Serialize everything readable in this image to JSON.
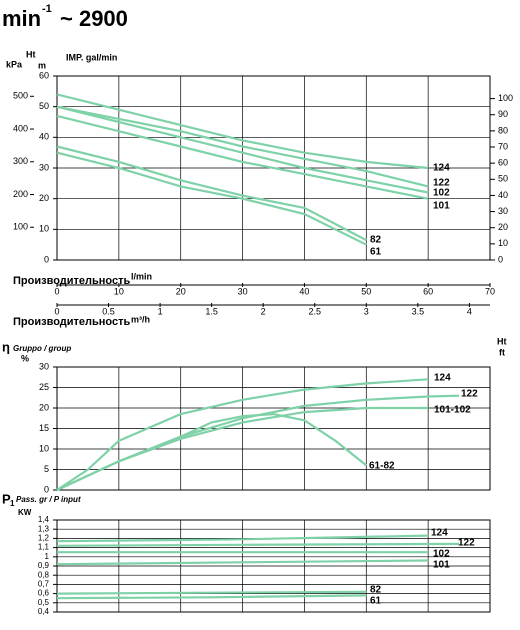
{
  "header": {
    "title": "min",
    "sup": "-1",
    "rest": "~ 2900"
  },
  "chart_data": [
    {
      "type": "line",
      "head_label": "Ht",
      "kpa_label": "kPa",
      "m_label": "m",
      "note": "IMP. gal/min",
      "xlabel": "Производительность",
      "xunit": "l/min",
      "x2label": "Производительность",
      "x2unit": "m³/h",
      "xlim": [
        0,
        70
      ],
      "xticks": [
        0,
        10,
        20,
        30,
        40,
        50,
        60,
        70
      ],
      "x2lim": [
        0,
        4.2
      ],
      "x2ticks": [
        0,
        0.5,
        1,
        1.5,
        2,
        2.5,
        3,
        3.5,
        4
      ],
      "ylim": [
        0,
        60
      ],
      "yticks": [
        0,
        10,
        20,
        30,
        40,
        50,
        60
      ],
      "ykpa_lim": [
        0,
        562
      ],
      "ykpa_ticks": [
        100,
        200,
        300,
        400,
        500
      ],
      "y2lim": [
        0,
        114
      ],
      "y2ticks": [
        0,
        10,
        20,
        30,
        40,
        50,
        60,
        70,
        80,
        90,
        100
      ],
      "grid": true,
      "series": [
        {
          "name": "124",
          "color": "#7fd1a8",
          "x": [
            0,
            10,
            20,
            30,
            40,
            50,
            60
          ],
          "values": [
            54,
            49,
            44,
            39,
            35,
            32,
            30
          ]
        },
        {
          "name": "122",
          "color": "#7fd1a8",
          "x": [
            0,
            10,
            20,
            30,
            40,
            50,
            60
          ],
          "values": [
            50,
            46,
            42,
            37,
            33,
            29,
            24
          ]
        },
        {
          "name": "102",
          "color": "#7fd1a8",
          "x": [
            0,
            10,
            20,
            30,
            40,
            50,
            60
          ],
          "values": [
            50,
            45,
            40,
            35,
            30,
            26,
            22
          ]
        },
        {
          "name": "101",
          "color": "#7fd1a8",
          "x": [
            0,
            10,
            20,
            30,
            40,
            50,
            60
          ],
          "values": [
            47,
            42,
            37,
            32,
            28,
            24,
            20
          ]
        },
        {
          "name": "82",
          "color": "#7fd1a8",
          "x": [
            0,
            10,
            20,
            30,
            40,
            50
          ],
          "values": [
            37,
            32,
            26,
            21,
            17,
            6.5
          ]
        },
        {
          "name": "61",
          "color": "#7fd1a8",
          "x": [
            0,
            10,
            20,
            30,
            40,
            50
          ],
          "values": [
            35,
            30,
            24,
            20,
            15,
            5
          ]
        }
      ]
    },
    {
      "type": "line",
      "ylabel": "η",
      "ysub": "Gruppo / group",
      "yunit": "%",
      "right_label": "Ht",
      "right_unit": "ft",
      "xlim": [
        0,
        70
      ],
      "xticks": [
        0,
        10,
        20,
        30,
        40,
        50,
        60,
        70
      ],
      "ylim": [
        0,
        30
      ],
      "yticks": [
        0,
        5,
        10,
        15,
        20,
        25,
        30
      ],
      "grid": true,
      "series": [
        {
          "name": "124",
          "color": "#7fd1a8",
          "x": [
            0,
            5,
            10,
            20,
            30,
            40,
            50,
            60
          ],
          "values": [
            0,
            5,
            12,
            18.5,
            22,
            24.5,
            26,
            27
          ]
        },
        {
          "name": "122",
          "color": "#7fd1a8",
          "x": [
            0,
            10,
            20,
            30,
            40,
            50,
            60,
            65
          ],
          "values": [
            0,
            7,
            13,
            17.5,
            20.5,
            22,
            22.8,
            23
          ]
        },
        {
          "name": "101-102",
          "color": "#7fd1a8",
          "x": [
            0,
            10,
            20,
            30,
            40,
            50,
            60
          ],
          "values": [
            0,
            7,
            12.5,
            16.5,
            19,
            20,
            20
          ]
        },
        {
          "name": "61-82",
          "color": "#7fd1a8",
          "x": [
            0,
            10,
            20,
            25,
            30,
            35,
            40,
            45,
            50
          ],
          "values": [
            0,
            7,
            13,
            16.5,
            18,
            18.5,
            17,
            12,
            6
          ]
        }
      ]
    },
    {
      "type": "line",
      "ylabel": "P",
      "ysub1": "1",
      "ysub": "Pass. gr / P input",
      "yunit": "KW",
      "xlim": [
        0,
        70
      ],
      "xticks": [
        0,
        10,
        20,
        30,
        40,
        50,
        60,
        70
      ],
      "ylim": [
        0.4,
        1.4
      ],
      "yticks": [
        {
          "value": 0.4,
          "label": "0,4"
        },
        {
          "value": 0.5,
          "label": "0,5"
        },
        {
          "value": 0.6,
          "label": "0,6"
        },
        {
          "value": 0.7,
          "label": "0,7"
        },
        {
          "value": 0.8,
          "label": "0,8"
        },
        {
          "value": 0.9,
          "label": "0,9"
        },
        {
          "value": 1,
          "label": "1"
        },
        {
          "value": 1.1,
          "label": "1,1"
        },
        {
          "value": 1.2,
          "label": "1,2"
        },
        {
          "value": 1.3,
          "label": "1,3"
        },
        {
          "value": 1.4,
          "label": "1,4"
        }
      ],
      "grid": true,
      "series": [
        {
          "name": "124",
          "color": "#7fd1a8",
          "x": [
            0,
            30,
            60
          ],
          "values": [
            1.17,
            1.19,
            1.23
          ]
        },
        {
          "name": "122",
          "color": "#7fd1a8",
          "x": [
            0,
            30,
            65
          ],
          "values": [
            1.12,
            1.13,
            1.14
          ]
        },
        {
          "name": "102",
          "color": "#7fd1a8",
          "x": [
            0,
            30,
            60
          ],
          "values": [
            1.05,
            1.05,
            1.05
          ]
        },
        {
          "name": "101",
          "color": "#7fd1a8",
          "x": [
            0,
            30,
            60
          ],
          "values": [
            0.92,
            0.94,
            0.96
          ]
        },
        {
          "name": "82",
          "color": "#7fd1a8",
          "x": [
            0,
            25,
            50
          ],
          "values": [
            0.6,
            0.61,
            0.62
          ]
        },
        {
          "name": "61",
          "color": "#7fd1a8",
          "x": [
            0,
            25,
            50
          ],
          "values": [
            0.55,
            0.56,
            0.58
          ]
        }
      ]
    }
  ]
}
